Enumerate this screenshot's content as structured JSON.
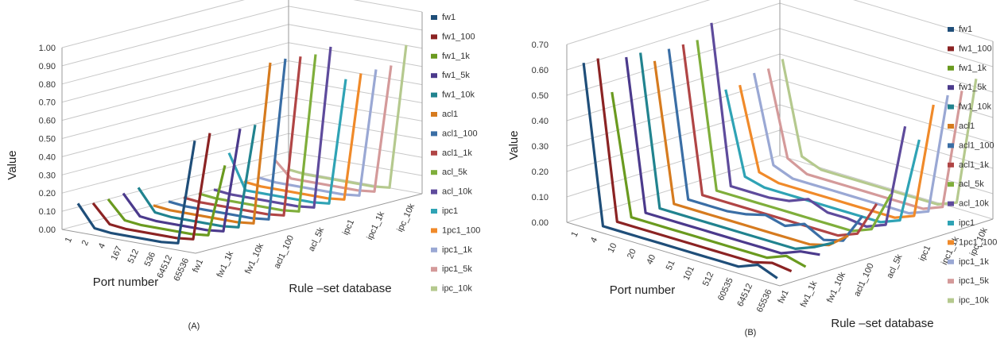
{
  "chart_data": [
    {
      "panel_label": "(A)",
      "type": "line",
      "style": "3d-line",
      "ylabel": "Value",
      "xlabel": "Port number",
      "zlabel": "Rule –set database",
      "ylim": [
        0,
        1.0
      ],
      "yticks": [
        "0.00",
        "0.10",
        "0.20",
        "0.30",
        "0.40",
        "0.50",
        "0.60",
        "0.70",
        "0.80",
        "0.90",
        "1.00"
      ],
      "x": [
        "1",
        "2",
        "4",
        "167",
        "512",
        "536",
        "64512",
        "65536"
      ],
      "z_tick_labels": [
        "fw1",
        "fw1_1k",
        "fw1_10k",
        "acl1_100",
        "acl_5k",
        "ipc1",
        "ipc1_1k",
        "ipc_10k"
      ],
      "legend_position": "right",
      "series": [
        {
          "name": "fw1",
          "color": "#1f4e79",
          "values": [
            0.14,
            0.02,
            0.01,
            0.01,
            0.01,
            0.01,
            0.02,
            0.6
          ]
        },
        {
          "name": "fw1_100",
          "color": "#8b2323",
          "values": [
            0.12,
            0.02,
            0.01,
            0.01,
            0.01,
            0.01,
            0.02,
            0.62
          ]
        },
        {
          "name": "fw1_1k",
          "color": "#6a9a1f",
          "values": [
            0.12,
            0.02,
            0.01,
            0.01,
            0.01,
            0.01,
            0.02,
            0.42
          ]
        },
        {
          "name": "fw1_5k",
          "color": "#4b3a8c",
          "values": [
            0.13,
            0.02,
            0.01,
            0.01,
            0.01,
            0.01,
            0.02,
            0.6
          ]
        },
        {
          "name": "fw1_10k",
          "color": "#21838f",
          "values": [
            0.14,
            0.02,
            0.01,
            0.01,
            0.01,
            0.01,
            0.02,
            0.6
          ]
        },
        {
          "name": "acl1",
          "color": "#d67b1f",
          "values": [
            0.02,
            0.01,
            0.01,
            0.01,
            0.01,
            0.01,
            0.02,
            0.92
          ]
        },
        {
          "name": "acl1_100",
          "color": "#3a6ea5",
          "values": [
            0.02,
            0.01,
            0.01,
            0.01,
            0.01,
            0.01,
            0.02,
            0.92
          ]
        },
        {
          "name": "acl1_1k",
          "color": "#b04545",
          "values": [
            0.02,
            0.01,
            0.01,
            0.01,
            0.01,
            0.01,
            0.02,
            0.91
          ]
        },
        {
          "name": "acl_5k",
          "color": "#7fae3b",
          "values": [
            0.02,
            0.01,
            0.01,
            0.01,
            0.01,
            0.01,
            0.02,
            0.9
          ]
        },
        {
          "name": "acl_10k",
          "color": "#5e4b9c",
          "values": [
            0.02,
            0.01,
            0.01,
            0.01,
            0.01,
            0.01,
            0.02,
            0.92
          ]
        },
        {
          "name": "ipc1",
          "color": "#2fa3b5",
          "values": [
            0.2,
            0.01,
            0.01,
            0.01,
            0.01,
            0.01,
            0.02,
            0.72
          ]
        },
        {
          "name": "1pc1_100",
          "color": "#f08a2a",
          "values": [
            0.02,
            0.01,
            0.01,
            0.01,
            0.01,
            0.01,
            0.02,
            0.73
          ]
        },
        {
          "name": "ipc1_1k",
          "color": "#9aa8d4",
          "values": [
            0.02,
            0.01,
            0.01,
            0.01,
            0.01,
            0.01,
            0.02,
            0.73
          ]
        },
        {
          "name": "ipc1_5k",
          "color": "#d49a9a",
          "values": [
            0.1,
            0.01,
            0.01,
            0.01,
            0.01,
            0.01,
            0.02,
            0.73
          ]
        },
        {
          "name": "ipc_10k",
          "color": "#b5c98e",
          "values": [
            0.02,
            0.01,
            0.01,
            0.01,
            0.01,
            0.01,
            0.02,
            0.82
          ]
        }
      ]
    },
    {
      "panel_label": "(B)",
      "type": "line",
      "style": "3d-line",
      "ylabel": "Value",
      "xlabel": "Port number",
      "zlabel": "Rule –set database",
      "ylim": [
        0,
        0.7
      ],
      "yticks": [
        "0.00",
        "0.10",
        "0.20",
        "0.30",
        "0.40",
        "0.50",
        "0.60",
        "0.70"
      ],
      "x": [
        "1",
        "4",
        "10",
        "20",
        "40",
        "51",
        "101",
        "512",
        "60535",
        "64512",
        "65536"
      ],
      "z_tick_labels": [
        "fw1",
        "fw1_1k",
        "fw1_10k",
        "acl1_100",
        "acl_5k",
        "ipc1",
        "ipc1_1k",
        "ipc_10k"
      ],
      "legend_position": "right",
      "series": [
        {
          "name": "fw1",
          "color": "#1f4e79",
          "values": [
            0.63,
            0.01,
            0.01,
            0.01,
            0.01,
            0.01,
            0.01,
            0.01,
            0.01,
            0.04,
            0.01
          ]
        },
        {
          "name": "fw1_100",
          "color": "#8b2323",
          "values": [
            0.63,
            0.01,
            0.01,
            0.01,
            0.01,
            0.01,
            0.01,
            0.01,
            0.01,
            0.03,
            0.02
          ]
        },
        {
          "name": "fw1_1k",
          "color": "#6a9a1f",
          "values": [
            0.48,
            0.01,
            0.01,
            0.01,
            0.01,
            0.01,
            0.01,
            0.01,
            0.01,
            0.04,
            0.02
          ]
        },
        {
          "name": "fw1_5k",
          "color": "#4b3a8c",
          "values": [
            0.6,
            0.01,
            0.01,
            0.01,
            0.01,
            0.01,
            0.01,
            0.01,
            0.01,
            0.04,
            0.05
          ]
        },
        {
          "name": "fw1_10k",
          "color": "#21838f",
          "values": [
            0.6,
            0.01,
            0.01,
            0.01,
            0.01,
            0.01,
            0.01,
            0.01,
            0.01,
            0.04,
            0.08
          ]
        },
        {
          "name": "acl1",
          "color": "#d67b1f",
          "values": [
            0.55,
            0.01,
            0.01,
            0.01,
            0.01,
            0.01,
            0.01,
            0.01,
            0.01,
            0.03,
            0.09
          ]
        },
        {
          "name": "acl1_100",
          "color": "#3a6ea5",
          "values": [
            0.58,
            0.01,
            0.01,
            0.01,
            0.02,
            0.04,
            0.02,
            0.05,
            0.01,
            0.03,
            0.15
          ]
        },
        {
          "name": "acl1_1k",
          "color": "#b04545",
          "values": [
            0.58,
            0.01,
            0.01,
            0.01,
            0.01,
            0.01,
            0.01,
            0.01,
            0.01,
            0.04,
            0.18
          ]
        },
        {
          "name": "acl_5k",
          "color": "#7fae3b",
          "values": [
            0.58,
            0.01,
            0.01,
            0.01,
            0.01,
            0.01,
            0.01,
            0.01,
            0.01,
            0.04,
            0.2
          ]
        },
        {
          "name": "acl_10k",
          "color": "#5e4b9c",
          "values": [
            0.63,
            0.01,
            0.01,
            0.01,
            0.02,
            0.05,
            0.02,
            0.02,
            0.01,
            0.04,
            0.45
          ]
        },
        {
          "name": "ipc1",
          "color": "#2fa3b5",
          "values": [
            0.35,
            0.03,
            0.01,
            0.01,
            0.01,
            0.01,
            0.01,
            0.01,
            0.01,
            0.04,
            0.38
          ]
        },
        {
          "name": "1pc1_100",
          "color": "#f08a2a",
          "values": [
            0.35,
            0.03,
            0.01,
            0.01,
            0.01,
            0.01,
            0.01,
            0.01,
            0.01,
            0.04,
            0.5
          ]
        },
        {
          "name": "ipc1_1k",
          "color": "#9aa8d4",
          "values": [
            0.38,
            0.04,
            0.01,
            0.01,
            0.01,
            0.01,
            0.01,
            0.01,
            0.01,
            0.04,
            0.52
          ]
        },
        {
          "name": "ipc1_5k",
          "color": "#d49a9a",
          "values": [
            0.38,
            0.05,
            0.01,
            0.01,
            0.01,
            0.01,
            0.01,
            0.01,
            0.01,
            0.04,
            0.52
          ]
        },
        {
          "name": "ipc_10k",
          "color": "#b5c98e",
          "values": [
            0.4,
            0.04,
            0.01,
            0.01,
            0.01,
            0.01,
            0.01,
            0.01,
            0.01,
            0.04,
            0.55
          ]
        }
      ]
    }
  ]
}
